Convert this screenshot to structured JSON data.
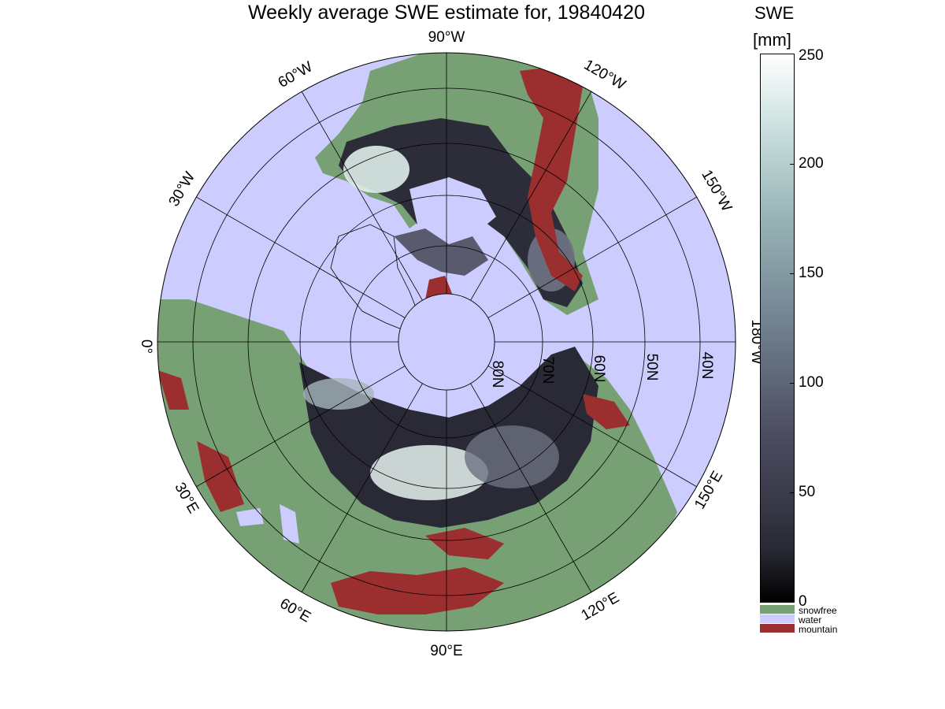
{
  "title": "Weekly average SWE estimate for, 19840420",
  "colorbar": {
    "title": "SWE",
    "unit": "[mm]",
    "ticks": [
      "0",
      "50",
      "100",
      "150",
      "200",
      "250"
    ]
  },
  "legend": {
    "categories": [
      {
        "label": "snowfree",
        "color": "#78a075"
      },
      {
        "label": "water",
        "color": "#ccccff"
      },
      {
        "label": "mountain",
        "color": "#9b2e2e"
      }
    ]
  },
  "map": {
    "projection": "north polar stereographic",
    "longitude_labels": [
      "90°W",
      "120°W",
      "150°W",
      "180°W",
      "150°E",
      "120°E",
      "90°E",
      "60°E",
      "30°E",
      "0°",
      "30°W",
      "60°W"
    ],
    "latitude_labels": [
      "80N",
      "70N",
      "60N",
      "50N",
      "40N"
    ],
    "colors": {
      "water": "#ccccff",
      "snowfree": "#78a075",
      "mountain": "#9b2e2e",
      "swe_low": "#0f0f16",
      "swe_high": "#e6f2ef"
    }
  }
}
